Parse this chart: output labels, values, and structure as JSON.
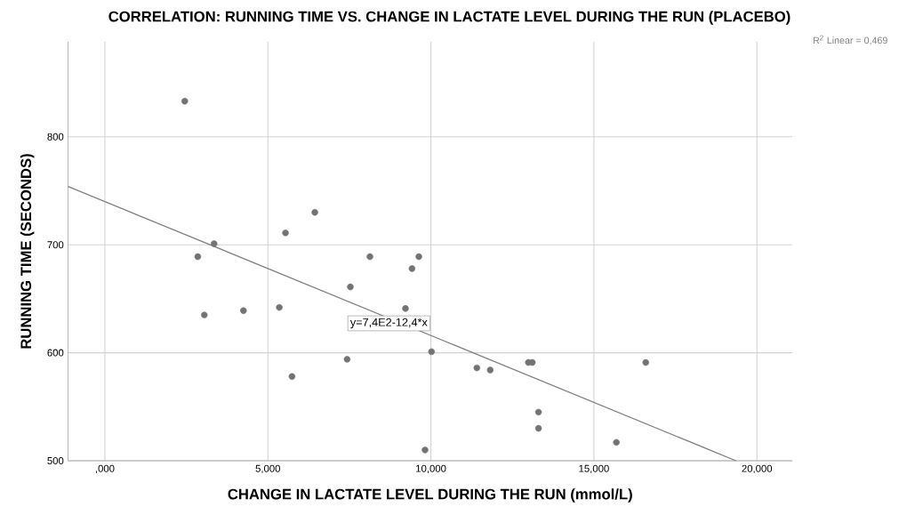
{
  "chart_data": {
    "type": "scatter",
    "title": "CORRELATION: RUNNING TIME VS. CHANGE IN LACTATE LEVEL DURING THE RUN (PLACEBO)",
    "xlabel": "CHANGE IN LACTATE LEVEL DURING THE RUN (mmol/L)",
    "ylabel": "RUNNING TIME (SECONDS)",
    "xlim": [
      -1.13,
      21.085
    ],
    "ylim": [
      500,
      888
    ],
    "xticks": [
      {
        "value": 0,
        "label": ",000"
      },
      {
        "value": 5,
        "label": "5,000"
      },
      {
        "value": 10,
        "label": "10,000"
      },
      {
        "value": 15,
        "label": "15,000"
      },
      {
        "value": 20,
        "label": "20,000"
      }
    ],
    "yticks": [
      500,
      600,
      700,
      800
    ],
    "grid": true,
    "series": [
      {
        "color": "#737373",
        "marker": "circle",
        "x": [
          2.45,
          3.35,
          2.85,
          3.05,
          4.25,
          5.35,
          5.54,
          6.44,
          5.74,
          7.53,
          7.43,
          8.13,
          9.22,
          9.42,
          9.63,
          9.82,
          10.02,
          11.41,
          11.82,
          12.99,
          13.11,
          13.3,
          13.3,
          15.69,
          16.59
        ],
        "values": [
          833,
          701,
          689,
          635,
          639,
          642,
          711,
          730,
          578,
          661,
          594,
          689,
          641,
          678,
          689,
          510,
          601,
          586,
          584,
          591,
          591,
          545,
          530,
          517,
          591
        ]
      },
      {
        "type": "line",
        "color": "#808080",
        "marker": "none",
        "line_style": "solid",
        "x": [
          -1.13,
          19.355
        ],
        "values": [
          754,
          500
        ]
      }
    ],
    "annotations": [
      "y=7,4E2-12,4*x",
      "R$^{2}$ Linear = 0,469"
    ]
  }
}
